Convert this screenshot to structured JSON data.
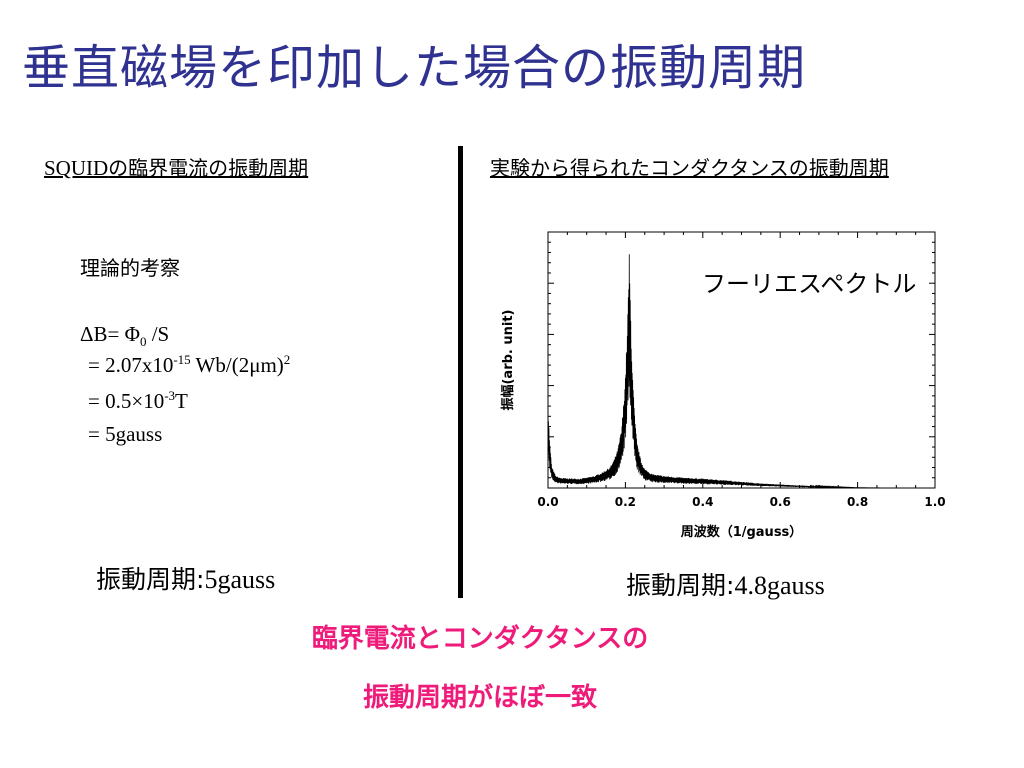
{
  "title": "垂直磁場を印加した場合の振動周期",
  "left": {
    "heading_ascii": "SQUID",
    "heading_rest": "の臨界電流の振動周期",
    "theory_title": "理論的考察",
    "eq1": {
      "a": "ΔB= Φ",
      "sub": "0",
      "b": " /S"
    },
    "eq2": {
      "a": " = 2.07x10",
      "sup1": "-15",
      "b": " Wb/(2μm)",
      "sup2": "2"
    },
    "eq3": {
      "a": " = 0.5",
      "mid": "×",
      "b": "10",
      "sup": "-3",
      "c": "T"
    },
    "eq4": " = 5gauss",
    "result_label": "振動周期:",
    "result_value": "5gauss"
  },
  "right": {
    "heading": "実験から得られたコンダクタンスの振動周期",
    "result_label": "振動周期:",
    "result_value": "4.8gauss"
  },
  "conclusion": {
    "line1": "臨界電流とコンダクタンスの",
    "line2": "振動周期がほぼ一致"
  },
  "chart_data": {
    "type": "line",
    "title": "",
    "annotation": "フーリエスペクトル",
    "xlabel": "周波数（1/gauss）",
    "ylabel": "振幅(arb. unit)",
    "xlim": [
      0.0,
      1.0
    ],
    "ylim": [
      0,
      10
    ],
    "xticks": [
      0.0,
      0.2,
      0.4,
      0.6,
      0.8,
      1.0
    ],
    "xtick_labels": [
      "0.0",
      "0.2",
      "0.4",
      "0.6",
      "0.8",
      "1.0"
    ],
    "ytick_labels_shown": false,
    "grid": false,
    "series": [
      {
        "color": "#000000",
        "x": [
          0.0,
          0.005,
          0.01,
          0.02,
          0.03,
          0.05,
          0.08,
          0.1,
          0.12,
          0.14,
          0.16,
          0.17,
          0.18,
          0.19,
          0.195,
          0.2,
          0.205,
          0.208,
          0.21,
          0.213,
          0.216,
          0.22,
          0.225,
          0.23,
          0.24,
          0.25,
          0.27,
          0.3,
          0.35,
          0.4,
          0.45,
          0.5,
          0.55,
          0.6,
          0.65,
          0.7,
          0.75,
          0.8,
          0.9,
          1.0
        ],
        "y": [
          2.4,
          1.2,
          0.6,
          0.35,
          0.3,
          0.28,
          0.27,
          0.3,
          0.35,
          0.45,
          0.6,
          0.8,
          1.1,
          1.7,
          2.4,
          3.3,
          4.6,
          5.9,
          6.8,
          5.4,
          4.1,
          2.9,
          1.9,
          1.3,
          0.8,
          0.55,
          0.4,
          0.35,
          0.3,
          0.27,
          0.23,
          0.18,
          0.13,
          0.1,
          0.07,
          0.05,
          0.03,
          0.01,
          0.0,
          0.0
        ]
      }
    ]
  }
}
